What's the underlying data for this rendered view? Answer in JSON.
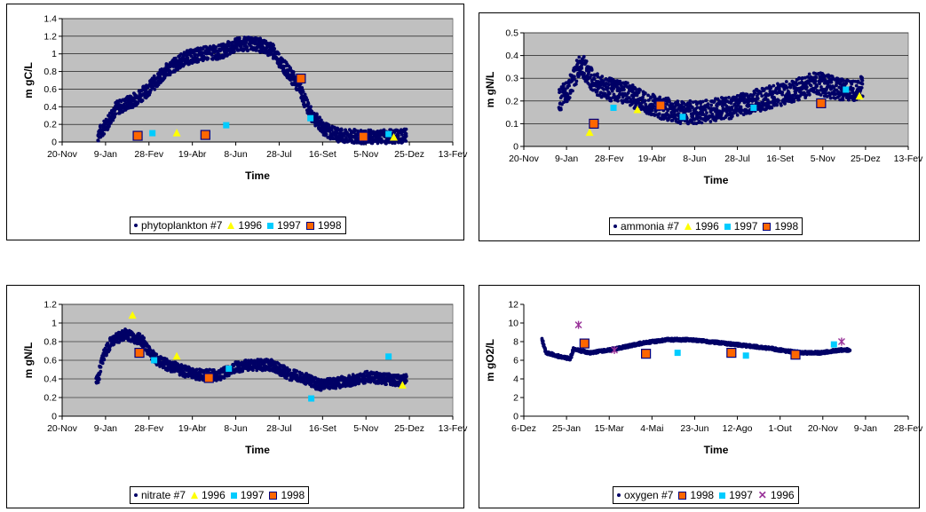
{
  "chart_data": [
    {
      "type": "scatter",
      "ylabel": "m gC/L",
      "xlabel": "Time",
      "ylim": [
        0,
        1.4
      ],
      "yticks": [
        "0",
        "0.2",
        "0.4",
        "0.6",
        "0.8",
        "1",
        "1.2",
        "1.4"
      ],
      "xticks": [
        "20-Nov",
        "9-Jan",
        "28-Fev",
        "19-Abr",
        "8-Jun",
        "28-Jul",
        "16-Set",
        "5-Nov",
        "25-Dez",
        "13-Fev"
      ],
      "xlim": [
        -41,
        409
      ],
      "grid": true,
      "legend_position": "bottom",
      "model": {
        "name": "phytoplankton #7",
        "profile": [
          [
            0,
            0.08
          ],
          [
            10,
            0.2
          ],
          [
            20,
            0.38
          ],
          [
            30,
            0.42
          ],
          [
            45,
            0.5
          ],
          [
            60,
            0.62
          ],
          [
            80,
            0.82
          ],
          [
            100,
            0.95
          ],
          [
            120,
            1.0
          ],
          [
            140,
            1.02
          ],
          [
            160,
            1.1
          ],
          [
            180,
            1.12
          ],
          [
            200,
            1.05
          ],
          [
            215,
            0.85
          ],
          [
            230,
            0.65
          ],
          [
            245,
            0.32
          ],
          [
            260,
            0.15
          ],
          [
            275,
            0.08
          ],
          [
            300,
            0.06
          ],
          [
            330,
            0.06
          ],
          [
            355,
            0.07
          ]
        ],
        "spread": 0.08,
        "start": 0,
        "end": 355
      },
      "series": [
        {
          "name": "1996",
          "marker": "triangle",
          "color": "#ffff00",
          "points": [
            [
              91,
              0.1
            ],
            [
              341,
              0.05
            ]
          ]
        },
        {
          "name": "1997",
          "marker": "square",
          "color": "#00ccff",
          "points": [
            [
              63,
              0.1
            ],
            [
              148,
              0.19
            ],
            [
              245,
              0.27
            ],
            [
              335,
              0.09
            ]
          ]
        },
        {
          "name": "1998",
          "marker": "outlined-square",
          "color": "#ff6600",
          "points": [
            [
              46,
              0.07
            ],
            [
              124,
              0.08
            ],
            [
              234,
              0.72
            ],
            [
              306,
              0.06
            ]
          ]
        }
      ]
    },
    {
      "type": "scatter",
      "ylabel": "m gN/L",
      "xlabel": "Time",
      "ylim": [
        0,
        0.5
      ],
      "yticks": [
        "0",
        "0.1",
        "0.2",
        "0.3",
        "0.4",
        "0.5"
      ],
      "xticks": [
        "20-Nov",
        "9-Jan",
        "28-Fev",
        "19-Abr",
        "8-Jun",
        "28-Jul",
        "16-Set",
        "5-Nov",
        "25-Dez",
        "13-Fev"
      ],
      "xlim": [
        -41,
        409
      ],
      "grid": true,
      "legend_position": "bottom",
      "model": {
        "name": "ammonia #7",
        "profile": [
          [
            0,
            0.2
          ],
          [
            10,
            0.25
          ],
          [
            20,
            0.32
          ],
          [
            25,
            0.37
          ],
          [
            40,
            0.28
          ],
          [
            60,
            0.25
          ],
          [
            80,
            0.23
          ],
          [
            100,
            0.2
          ],
          [
            120,
            0.17
          ],
          [
            140,
            0.15
          ],
          [
            160,
            0.15
          ],
          [
            180,
            0.16
          ],
          [
            200,
            0.17
          ],
          [
            220,
            0.19
          ],
          [
            240,
            0.21
          ],
          [
            260,
            0.23
          ],
          [
            280,
            0.25
          ],
          [
            300,
            0.28
          ],
          [
            320,
            0.26
          ],
          [
            340,
            0.24
          ],
          [
            355,
            0.26
          ]
        ],
        "spread": 0.05,
        "start": 0,
        "end": 355
      },
      "series": [
        {
          "name": "1996",
          "marker": "triangle",
          "color": "#ffff00",
          "points": [
            [
              36,
              0.06
            ],
            [
              92,
              0.16
            ],
            [
              352,
              0.22
            ]
          ]
        },
        {
          "name": "1997",
          "marker": "square",
          "color": "#00ccff",
          "points": [
            [
              64,
              0.17
            ],
            [
              145,
              0.13
            ],
            [
              228,
              0.17
            ],
            [
              336,
              0.25
            ]
          ]
        },
        {
          "name": "1998",
          "marker": "outlined-square",
          "color": "#ff6600",
          "points": [
            [
              41,
              0.1
            ],
            [
              119,
              0.18
            ],
            [
              307,
              0.19
            ]
          ]
        }
      ]
    },
    {
      "type": "scatter",
      "ylabel": "m gN/L",
      "xlabel": "Time",
      "ylim": [
        0,
        1.2
      ],
      "yticks": [
        "0",
        "0.2",
        "0.4",
        "0.6",
        "0.8",
        "1",
        "1.2"
      ],
      "xticks": [
        "20-Nov",
        "9-Jan",
        "28-Fev",
        "19-Abr",
        "8-Jun",
        "28-Jul",
        "16-Set",
        "5-Nov",
        "25-Dez",
        "13-Fev"
      ],
      "xlim": [
        -41,
        409
      ],
      "grid": true,
      "legend_position": "bottom",
      "model": {
        "name": "nitrate #7",
        "profile": [
          [
            -2,
            0.38
          ],
          [
            0,
            0.4
          ],
          [
            5,
            0.62
          ],
          [
            15,
            0.8
          ],
          [
            30,
            0.88
          ],
          [
            50,
            0.82
          ],
          [
            65,
            0.62
          ],
          [
            80,
            0.55
          ],
          [
            100,
            0.48
          ],
          [
            120,
            0.44
          ],
          [
            140,
            0.44
          ],
          [
            160,
            0.53
          ],
          [
            180,
            0.55
          ],
          [
            200,
            0.55
          ],
          [
            220,
            0.45
          ],
          [
            240,
            0.4
          ],
          [
            255,
            0.33
          ],
          [
            270,
            0.35
          ],
          [
            290,
            0.38
          ],
          [
            310,
            0.42
          ],
          [
            330,
            0.4
          ],
          [
            350,
            0.38
          ],
          [
            355,
            0.4
          ]
        ],
        "spread": 0.06,
        "start": -2,
        "end": 355
      },
      "series": [
        {
          "name": "1996",
          "marker": "triangle",
          "color": "#ffff00",
          "points": [
            [
              40,
              1.08
            ],
            [
              91,
              0.64
            ],
            [
              351,
              0.33
            ]
          ]
        },
        {
          "name": "1997",
          "marker": "square",
          "color": "#00ccff",
          "points": [
            [
              65,
              0.6
            ],
            [
              151,
              0.51
            ],
            [
              246,
              0.19
            ],
            [
              335,
              0.64
            ]
          ]
        },
        {
          "name": "1998",
          "marker": "outlined-square",
          "color": "#ff6600",
          "points": [
            [
              48,
              0.68
            ],
            [
              128,
              0.41
            ]
          ]
        }
      ]
    },
    {
      "type": "scatter",
      "ylabel": "m gO2/L",
      "xlabel": "Time",
      "ylim": [
        0,
        12
      ],
      "yticks": [
        "0",
        "2",
        "4",
        "6",
        "8",
        "10",
        "12"
      ],
      "xticks": [
        "6-Dez",
        "25-Jan",
        "15-Mar",
        "4-Mai",
        "23-Jun",
        "12-Ago",
        "1-Out",
        "20-Nov",
        "9-Jan",
        "28-Fev"
      ],
      "xlim": [
        -26,
        424
      ],
      "grid": false,
      "legend_position": "bottom",
      "model": {
        "name": "oxygen #7",
        "profile": [
          [
            -5,
            8.2
          ],
          [
            0,
            6.8
          ],
          [
            20,
            6.3
          ],
          [
            28,
            6.2
          ],
          [
            32,
            7.2
          ],
          [
            50,
            6.8
          ],
          [
            80,
            7.2
          ],
          [
            110,
            7.8
          ],
          [
            140,
            8.2
          ],
          [
            170,
            8.2
          ],
          [
            200,
            7.9
          ],
          [
            230,
            7.6
          ],
          [
            260,
            7.3
          ],
          [
            280,
            7.0
          ],
          [
            300,
            6.8
          ],
          [
            320,
            6.8
          ],
          [
            345,
            7.1
          ],
          [
            355,
            7.1
          ]
        ],
        "spread": 0.15,
        "start": -5,
        "end": 355
      },
      "series": [
        {
          "name": "1998",
          "marker": "outlined-square",
          "color": "#ff6600",
          "points": [
            [
              45,
              7.8
            ],
            [
              117,
              6.7
            ],
            [
              217,
              6.8
            ],
            [
              292,
              6.6
            ]
          ]
        },
        {
          "name": "1997",
          "marker": "square",
          "color": "#00ccff",
          "points": [
            [
              154,
              6.8
            ],
            [
              234,
              6.5
            ],
            [
              337,
              7.7
            ]
          ]
        },
        {
          "name": "1996",
          "marker": "x",
          "color": "#993399",
          "points": [
            [
              38,
              9.8
            ],
            [
              80,
              7.1
            ],
            [
              346,
              8.0
            ]
          ]
        }
      ]
    }
  ]
}
